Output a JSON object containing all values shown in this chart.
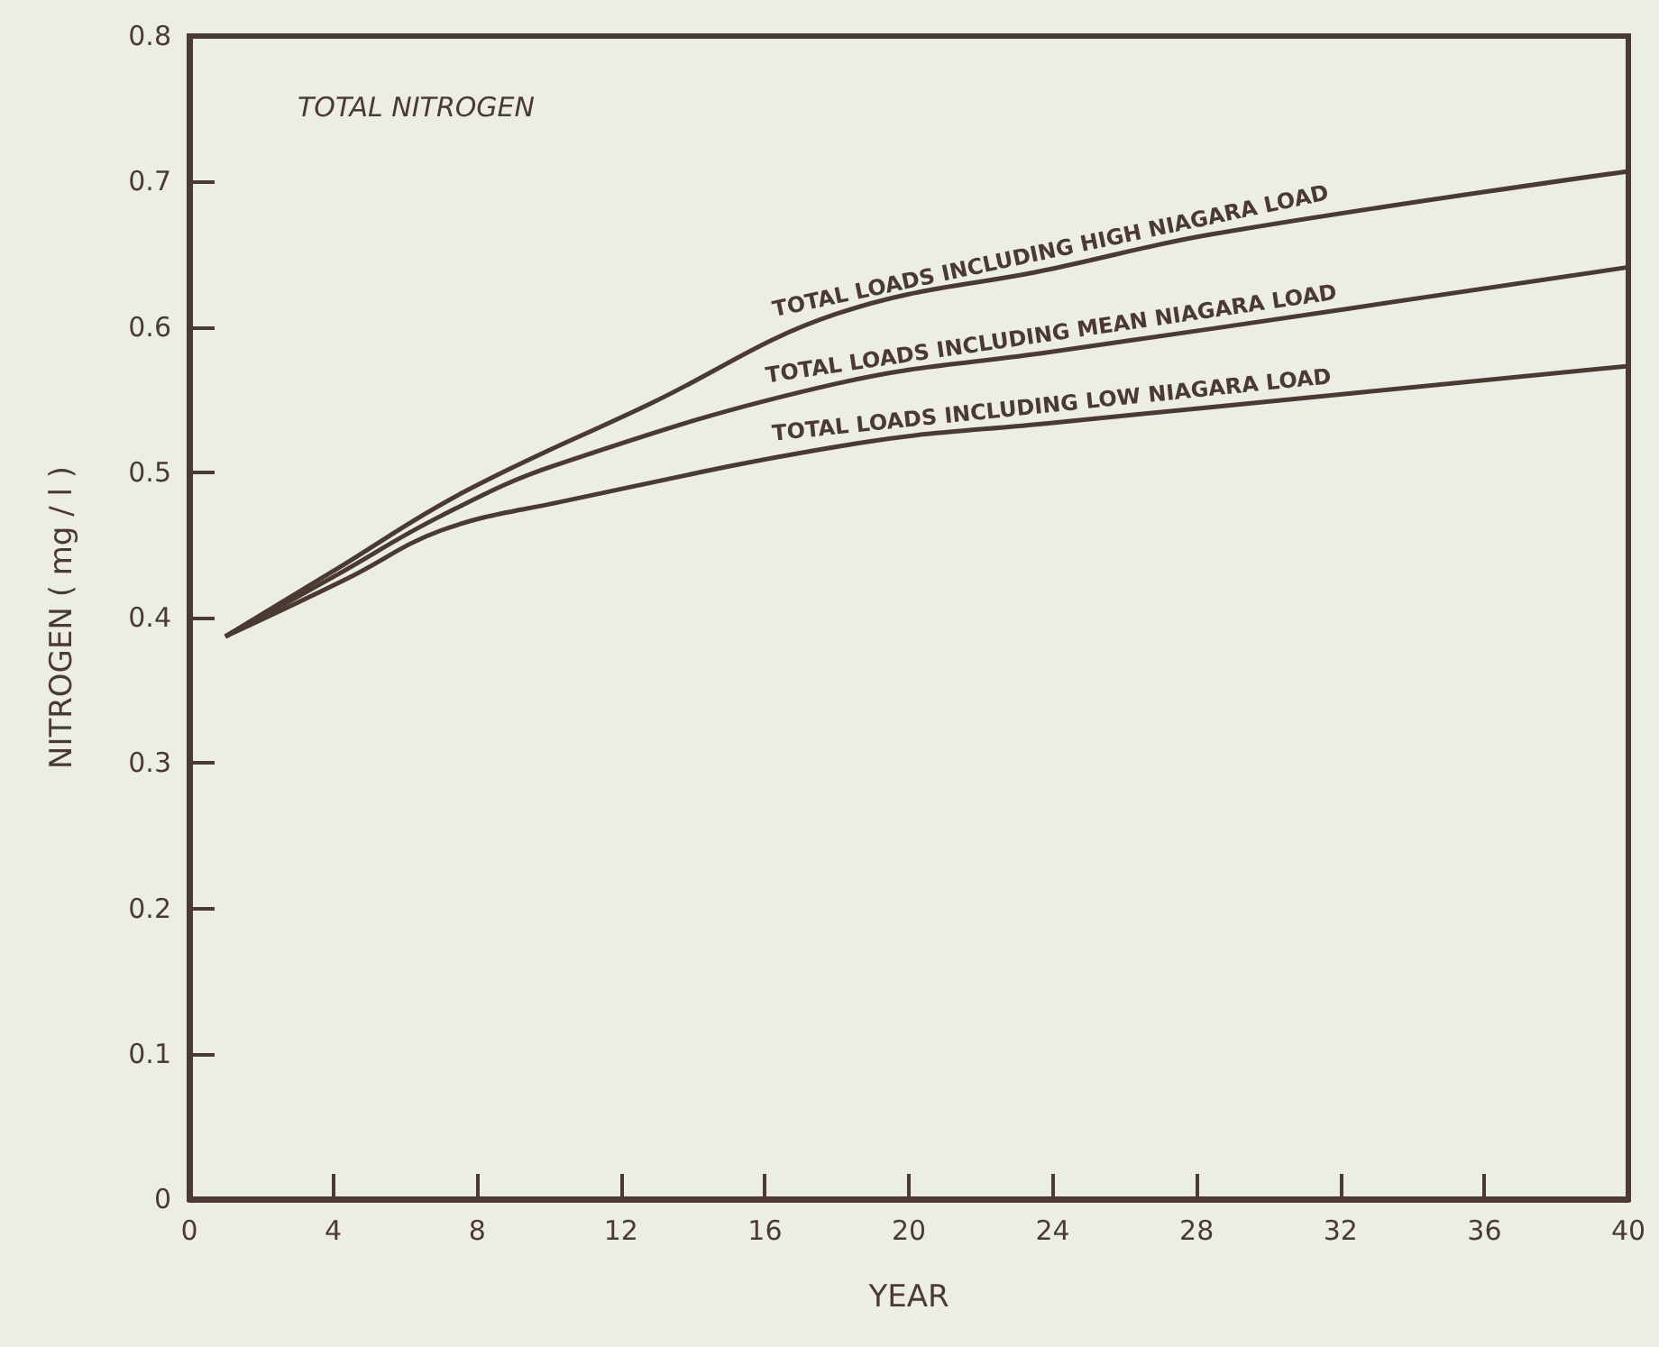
{
  "chart_data": {
    "type": "line",
    "annotations": [
      "TOTAL NITROGEN"
    ],
    "xlabel": "YEAR",
    "ylabel": "NITROGEN ( mg / l )",
    "xlim": [
      0,
      40
    ],
    "xticks": [
      0,
      4,
      8,
      12,
      16,
      20,
      24,
      28,
      32,
      36,
      40
    ],
    "ylim": [
      0,
      0.8
    ],
    "yticks": [
      0,
      0.1,
      0.2,
      0.3,
      0.4,
      0.5,
      0.6,
      0.7,
      0.8
    ],
    "grid": false,
    "legend": false,
    "marker": "none",
    "line_style": "solid",
    "series": [
      {
        "name": "TOTAL LOADS INCLUDING HIGH NIAGARA LOAD",
        "color": "#4a3a32",
        "x": [
          1,
          4,
          7.6,
          12.8,
          18,
          24,
          28.5,
          40
        ],
        "values": [
          0.387,
          0.432,
          0.486,
          0.547,
          0.609,
          0.64,
          0.664,
          0.707
        ]
      },
      {
        "name": "TOTAL LOADS INCLUDING MEAN NIAGARA LOAD",
        "color": "#4a3a32",
        "x": [
          1,
          4,
          7,
          10.2,
          18,
          24,
          28.5,
          40
        ],
        "values": [
          0.387,
          0.428,
          0.47,
          0.505,
          0.561,
          0.583,
          0.599,
          0.641
        ]
      },
      {
        "name": "TOTAL LOADS INCLUDING LOW NIAGARA LOAD",
        "color": "#4a3a32",
        "x": [
          1,
          4.4,
          7,
          10.2,
          18.6,
          24,
          28.5,
          40
        ],
        "values": [
          0.387,
          0.427,
          0.46,
          0.479,
          0.52,
          0.534,
          0.545,
          0.573
        ]
      }
    ]
  }
}
